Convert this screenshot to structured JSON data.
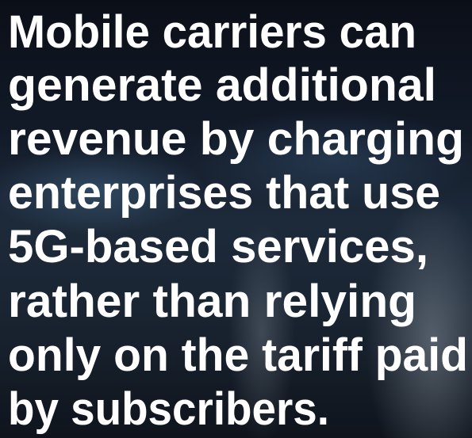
{
  "caption": {
    "lines": [
      "Mobile carriers can",
      "generate additional",
      "revenue by charging",
      "enterprises that use",
      "5G-based services,",
      "rather than relying",
      "only on the tariff paid",
      "by subscribers."
    ]
  }
}
